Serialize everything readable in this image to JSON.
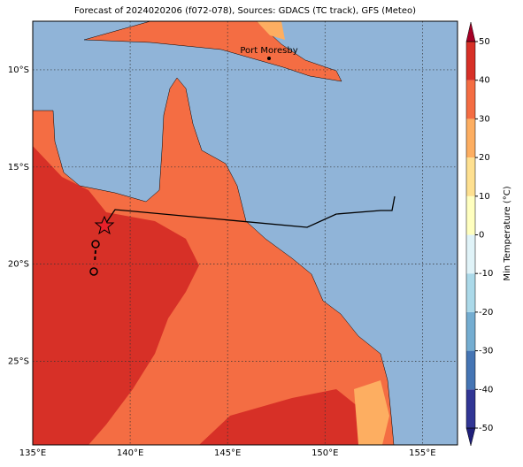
{
  "title": "Forecast of 2024020206 (f072-078), Sources: GDACS (TC track), GFS (Meteo)",
  "map": {
    "xlim": [
      135,
      156.8
    ],
    "ylim": [
      -29.3,
      -7.5
    ],
    "xticks": [
      {
        "value": 135,
        "label": "135°E"
      },
      {
        "value": 140,
        "label": "140°E"
      },
      {
        "value": 145,
        "label": "145°E"
      },
      {
        "value": 150,
        "label": "150°E"
      },
      {
        "value": 155,
        "label": "155°E"
      }
    ],
    "yticks": [
      {
        "value": -10,
        "label": "10°S"
      },
      {
        "value": -15,
        "label": "15°S"
      },
      {
        "value": -20,
        "label": "20°S"
      },
      {
        "value": -25,
        "label": "25°S"
      }
    ],
    "city": "Port Moresby"
  },
  "colorbar": {
    "label": "Min Temperature (°C)",
    "lim": [
      -50,
      50
    ],
    "ticks": [
      -50,
      -40,
      -30,
      -20,
      -10,
      0,
      10,
      20,
      30,
      40,
      50
    ],
    "colors": [
      "#313695",
      "#4575b4",
      "#74add1",
      "#abd9e9",
      "#e0f3f8",
      "#ffffbf",
      "#fee090",
      "#fdae61",
      "#f46d43",
      "#d73027"
    ],
    "extend_colors": [
      "#1f1f7a",
      "#a50026"
    ]
  }
}
